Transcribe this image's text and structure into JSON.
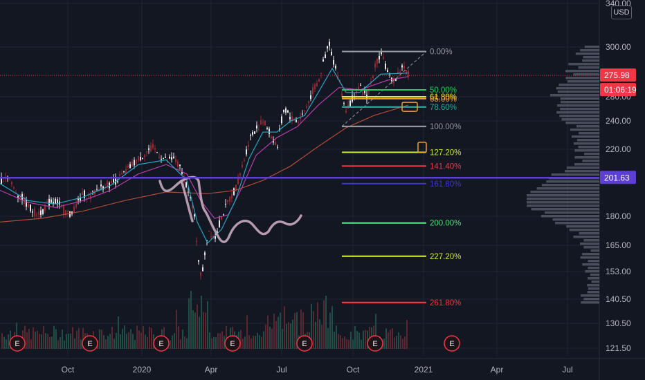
{
  "currency": "USD",
  "chart_data": {
    "type": "candlestick",
    "title": "",
    "xlabel": "",
    "ylabel": "",
    "x_ticks": [
      "Oct",
      "2020",
      "Apr",
      "Jul",
      "Oct",
      "2021",
      "Apr",
      "Jul"
    ],
    "y_ticks": [
      "340.00",
      "300.00",
      "280.00",
      "240.00",
      "220.00",
      "180.00",
      "165.00",
      "153.00",
      "140.50",
      "130.50",
      "121.50"
    ],
    "ylim": [
      118,
      342
    ],
    "log_scale": true,
    "price_labels": [
      {
        "text": "275.98",
        "color": "#f23645"
      },
      {
        "text": "01:06:19",
        "color": "#f23645"
      },
      {
        "text": "201.63",
        "color": "#5b3fd6"
      }
    ],
    "current_price": 275.98,
    "horizontal_line": 201.63,
    "fibonacci": [
      {
        "label": "0.00%",
        "value": 297.0,
        "color": "#9598a1"
      },
      {
        "label": "50.00%",
        "value": 264.0,
        "color": "#22c55e"
      },
      {
        "label": "61.80%",
        "value": 258.5,
        "color": "#e6e62a"
      },
      {
        "label": "65.00%",
        "value": 257.0,
        "color": "#f0a030"
      },
      {
        "label": "78.60%",
        "value": 250.5,
        "color": "#26a69a"
      },
      {
        "label": "100.00%",
        "value": 236.0,
        "color": "#9598a1"
      },
      {
        "label": "127.20%",
        "value": 218.0,
        "color": "#c8e632"
      },
      {
        "label": "141.40%",
        "value": 209.0,
        "color": "#f23645"
      },
      {
        "label": "161.80%",
        "value": 198.0,
        "color": "#3f36c9"
      },
      {
        "label": "200.00%",
        "value": 175.5,
        "color": "#4ade80"
      },
      {
        "label": "227.20%",
        "value": 158.5,
        "color": "#c8e632"
      },
      {
        "label": "261.80%",
        "value": 137.5,
        "color": "#f23645"
      }
    ],
    "earnings_markers": [
      "E",
      "E",
      "E",
      "E",
      "E",
      "E",
      "E"
    ],
    "price_path": [
      [
        0,
        200
      ],
      [
        10,
        203
      ],
      [
        20,
        194
      ],
      [
        30,
        190
      ],
      [
        40,
        185
      ],
      [
        50,
        181
      ],
      [
        60,
        182
      ],
      [
        70,
        187
      ],
      [
        80,
        188
      ],
      [
        90,
        183
      ],
      [
        100,
        180
      ],
      [
        110,
        186
      ],
      [
        120,
        192
      ],
      [
        130,
        190
      ],
      [
        140,
        195
      ],
      [
        150,
        197
      ],
      [
        160,
        198
      ],
      [
        170,
        201
      ],
      [
        180,
        205
      ],
      [
        190,
        210
      ],
      [
        200,
        214
      ],
      [
        210,
        218
      ],
      [
        220,
        221
      ],
      [
        230,
        216
      ],
      [
        240,
        212
      ],
      [
        250,
        214
      ],
      [
        260,
        207
      ],
      [
        270,
        196
      ],
      [
        280,
        178
      ],
      [
        285,
        160
      ],
      [
        290,
        147
      ],
      [
        295,
        160
      ],
      [
        300,
        172
      ],
      [
        310,
        168
      ],
      [
        320,
        180
      ],
      [
        330,
        188
      ],
      [
        340,
        196
      ],
      [
        350,
        210
      ],
      [
        360,
        228
      ],
      [
        370,
        235
      ],
      [
        380,
        240
      ],
      [
        390,
        230
      ],
      [
        400,
        222
      ],
      [
        405,
        238
      ],
      [
        410,
        250
      ],
      [
        420,
        242
      ],
      [
        430,
        240
      ],
      [
        440,
        248
      ],
      [
        450,
        262
      ],
      [
        460,
        272
      ],
      [
        470,
        296
      ],
      [
        475,
        305
      ],
      [
        480,
        290
      ],
      [
        490,
        270
      ],
      [
        495,
        255
      ],
      [
        500,
        248
      ],
      [
        510,
        260
      ],
      [
        520,
        265
      ],
      [
        530,
        258
      ],
      [
        540,
        282
      ],
      [
        550,
        298
      ],
      [
        560,
        275
      ],
      [
        570,
        272
      ],
      [
        580,
        284
      ],
      [
        590,
        277
      ]
    ],
    "ema_fast": [
      [
        0,
        198
      ],
      [
        40,
        188
      ],
      [
        80,
        186
      ],
      [
        120,
        190
      ],
      [
        160,
        197
      ],
      [
        200,
        210
      ],
      [
        240,
        213
      ],
      [
        270,
        200
      ],
      [
        285,
        176
      ],
      [
        300,
        165
      ],
      [
        320,
        172
      ],
      [
        340,
        188
      ],
      [
        360,
        214
      ],
      [
        380,
        232
      ],
      [
        400,
        232
      ],
      [
        420,
        240
      ],
      [
        440,
        244
      ],
      [
        460,
        262
      ],
      [
        480,
        282
      ],
      [
        500,
        262
      ],
      [
        520,
        262
      ],
      [
        550,
        277
      ],
      [
        590,
        278
      ]
    ],
    "ema_mid": [
      [
        0,
        194
      ],
      [
        40,
        187
      ],
      [
        80,
        184
      ],
      [
        120,
        188
      ],
      [
        160,
        194
      ],
      [
        200,
        204
      ],
      [
        240,
        210
      ],
      [
        270,
        204
      ],
      [
        290,
        188
      ],
      [
        310,
        178
      ],
      [
        330,
        180
      ],
      [
        350,
        196
      ],
      [
        370,
        216
      ],
      [
        400,
        228
      ],
      [
        430,
        236
      ],
      [
        460,
        252
      ],
      [
        490,
        266
      ],
      [
        520,
        264
      ],
      [
        560,
        272
      ],
      [
        590,
        275
      ]
    ],
    "ema_slow": [
      [
        0,
        176
      ],
      [
        60,
        178
      ],
      [
        120,
        182
      ],
      [
        180,
        188
      ],
      [
        240,
        193
      ],
      [
        300,
        192
      ],
      [
        340,
        194
      ],
      [
        380,
        200
      ],
      [
        420,
        209
      ],
      [
        460,
        222
      ],
      [
        500,
        235
      ],
      [
        540,
        244
      ],
      [
        590,
        252
      ]
    ]
  }
}
